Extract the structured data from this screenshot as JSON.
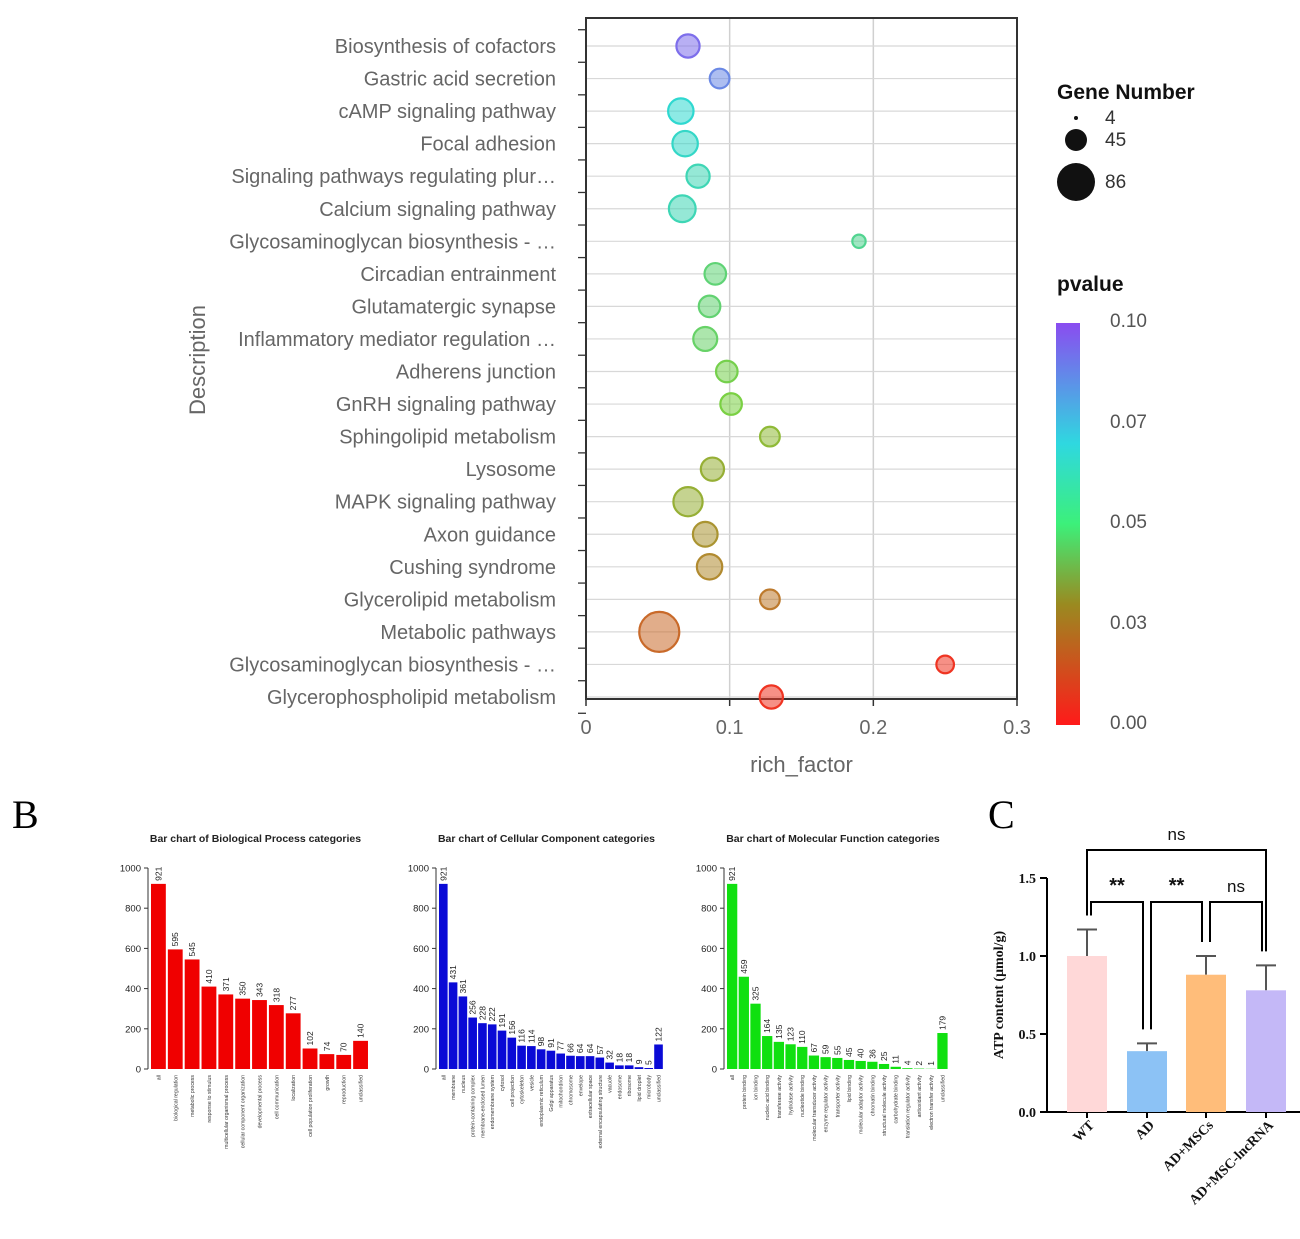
{
  "panel_b_letter": "B",
  "panel_c_letter": "C",
  "legend": {
    "size_title": "Gene Number",
    "size_labels": [
      "4",
      "45",
      "86"
    ],
    "color_title": "pvalue",
    "color_ticks": [
      "0.10",
      "0.07",
      "0.05",
      "0.03",
      "0.00"
    ]
  },
  "chart_data": [
    {
      "id": "A",
      "type": "scatter",
      "title": "",
      "xlabel": "rich_factor",
      "ylabel": "Description",
      "xlim": [
        0,
        0.3
      ],
      "xticks": [
        "0",
        "0.1",
        "0.2",
        "0.3"
      ],
      "grid": true,
      "legend_position": "right",
      "colorscale": [
        "#ff1f1f",
        "#7fcf3a",
        "#2fd8d0",
        "#8a5cf0"
      ],
      "categories": [
        "Biosynthesis of cofactors",
        "Gastric acid secretion",
        "cAMP signaling pathway",
        "Focal adhesion",
        "Signaling pathways regulating plur…",
        "Calcium signaling pathway",
        "Glycosaminoglycan biosynthesis - …",
        "Circadian entrainment",
        "Glutamatergic synapse",
        "Inflammatory mediator regulation …",
        "Adherens junction",
        "GnRH signaling pathway",
        "Sphingolipid metabolism",
        "Lysosome",
        "MAPK signaling pathway",
        "Axon guidance",
        "Cushing syndrome",
        "Glycerolipid metabolism",
        "Metabolic pathways",
        "Glycosaminoglycan biosynthesis - …",
        "Glycerophospholipid metabolism"
      ],
      "rich_factor": [
        0.071,
        0.093,
        0.066,
        0.069,
        0.078,
        0.067,
        0.19,
        0.09,
        0.086,
        0.083,
        0.098,
        0.101,
        0.128,
        0.088,
        0.071,
        0.083,
        0.086,
        0.128,
        0.051,
        0.25,
        0.129
      ],
      "gene_number": [
        22,
        14,
        28,
        28,
        22,
        32,
        4,
        18,
        18,
        24,
        18,
        18,
        14,
        22,
        40,
        26,
        28,
        14,
        86,
        10,
        22
      ],
      "pvalue": [
        0.095,
        0.088,
        0.066,
        0.064,
        0.06,
        0.06,
        0.052,
        0.046,
        0.045,
        0.043,
        0.037,
        0.035,
        0.029,
        0.027,
        0.027,
        0.022,
        0.02,
        0.017,
        0.014,
        0.004,
        0.004
      ]
    },
    {
      "id": "B1",
      "type": "bar",
      "title": "Bar chart of Biological Process categories",
      "color": "#f00000",
      "ylim": [
        0,
        1000
      ],
      "yticks": [
        "0",
        "200",
        "400",
        "600",
        "800",
        "1000"
      ],
      "categories": [
        "all",
        "biological regulation",
        "metabolic process",
        "response to stimulus",
        "multicellular organismal process",
        "cellular component organization",
        "developmental process",
        "cell communication",
        "localization",
        "cell population proliferation",
        "growth",
        "reproduction",
        "unclassified"
      ],
      "values": [
        921,
        595,
        545,
        410,
        371,
        350,
        343,
        318,
        277,
        102,
        74,
        70,
        140
      ]
    },
    {
      "id": "B2",
      "type": "bar",
      "title": "Bar chart of Cellular Component categories",
      "color": "#0a0ad6",
      "ylim": [
        0,
        1000
      ],
      "yticks": [
        "0",
        "200",
        "400",
        "600",
        "800",
        "1000"
      ],
      "categories": [
        "all",
        "membrane",
        "nucleus",
        "protein-containing complex",
        "membrane-enclosed lumen",
        "endomembrane system",
        "cytosol",
        "cell projection",
        "cytoskeleton",
        "vesicle",
        "endoplasmic reticulum",
        "Golgi apparatus",
        "mitochondrion",
        "chromosome",
        "envelope",
        "extracellular space",
        "external encapsulating structure",
        "vacuole",
        "endosome",
        "ribosome",
        "lipid droplet",
        "microbody",
        "unclassified"
      ],
      "values": [
        921,
        431,
        361,
        256,
        228,
        222,
        191,
        156,
        116,
        114,
        98,
        91,
        77,
        66,
        64,
        64,
        57,
        32,
        18,
        18,
        9,
        5,
        122
      ]
    },
    {
      "id": "B3",
      "type": "bar",
      "title": "Bar chart of Molecular Function categories",
      "color": "#10e010",
      "ylim": [
        0,
        1000
      ],
      "yticks": [
        "0",
        "200",
        "400",
        "600",
        "800",
        "1000"
      ],
      "categories": [
        "all",
        "protein binding",
        "ion binding",
        "nucleic acid binding",
        "transferase activity",
        "hydrolase activity",
        "nucleotide binding",
        "molecular transducer activity",
        "enzyme regulator activity",
        "transporter activity",
        "lipid binding",
        "molecular adaptor activity",
        "chromatin binding",
        "structural molecule activity",
        "carbohydrate binding",
        "translation regulator activity",
        "antioxidant activity",
        "electron transfer activity",
        "unclassified"
      ],
      "values": [
        921,
        459,
        325,
        164,
        135,
        123,
        110,
        67,
        59,
        55,
        45,
        40,
        36,
        25,
        11,
        4,
        2,
        1,
        179
      ],
      "labels": [
        "921",
        "459",
        "325",
        "164",
        "135",
        "123",
        "110",
        "67",
        "59",
        "55",
        "45",
        "40",
        "36",
        "25",
        "11",
        "4",
        "2",
        "1",
        "179"
      ]
    },
    {
      "id": "C",
      "type": "bar",
      "ylabel": "ATP content (μmol/g)",
      "ylim": [
        0,
        1.5
      ],
      "yticks": [
        "0.0",
        "0.5",
        "1.0",
        "1.5"
      ],
      "categories": [
        "WT",
        "AD",
        "AD+MSCs",
        "AD+MSC-lncRNA"
      ],
      "values": [
        1.0,
        0.39,
        0.88,
        0.78
      ],
      "errors": [
        0.17,
        0.05,
        0.12,
        0.16
      ],
      "colors": [
        "#ffd8d8",
        "#8cc2f5",
        "#ffbd7a",
        "#c4b8f7"
      ],
      "significance": [
        {
          "from": 0,
          "to": 1,
          "label": "**"
        },
        {
          "from": 1,
          "to": 2,
          "label": "**"
        },
        {
          "from": 2,
          "to": 3,
          "label": "ns"
        },
        {
          "from": 0,
          "to": 3,
          "label": "ns"
        }
      ]
    }
  ]
}
